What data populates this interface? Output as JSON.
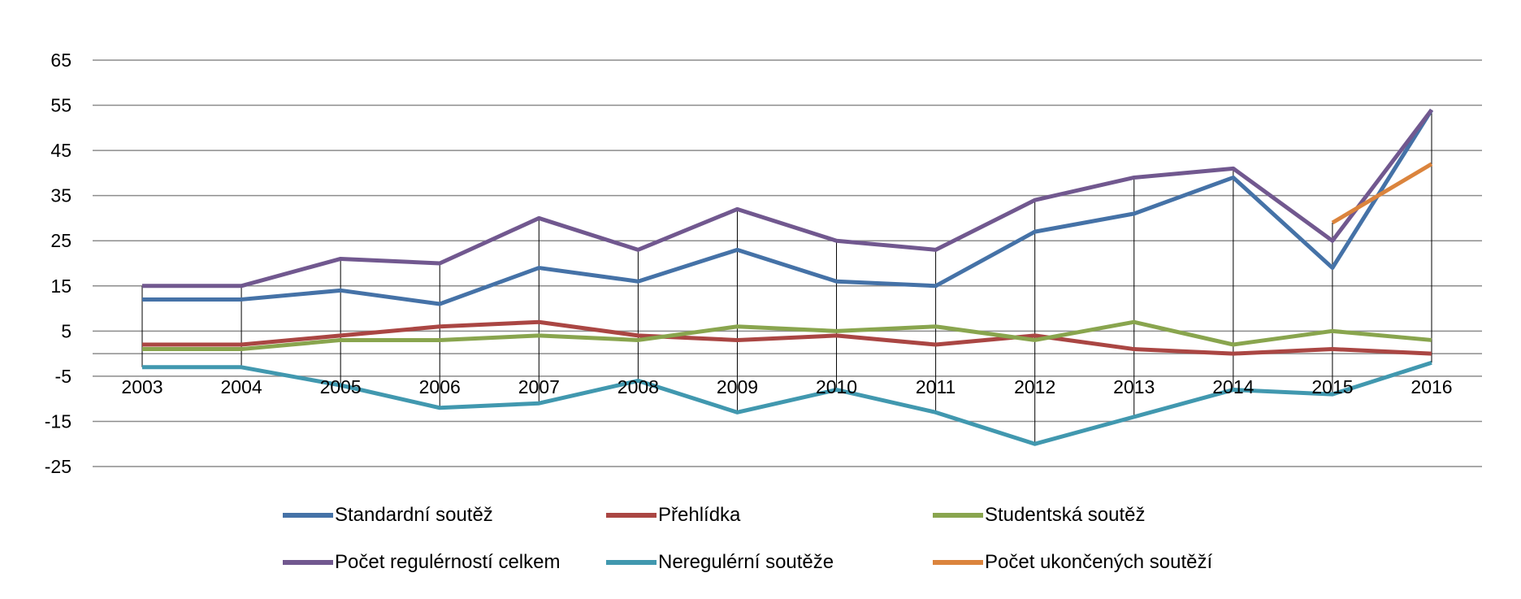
{
  "chart_data": {
    "type": "line",
    "title": "",
    "xlabel": "",
    "ylabel": "",
    "ylim": [
      -25,
      65
    ],
    "yticks": [
      "65",
      "55",
      "45",
      "35",
      "25",
      "15",
      "5",
      "-5",
      "-15",
      "-25"
    ],
    "ytick_values": [
      65,
      55,
      45,
      35,
      25,
      15,
      5,
      -5,
      -15,
      -25
    ],
    "categories": [
      "2003",
      "2004",
      "2005",
      "2006",
      "2007",
      "2008",
      "2009",
      "2010",
      "2011",
      "2012",
      "2013",
      "2014",
      "2015",
      "2016"
    ],
    "grid": true,
    "high_low_lines": true,
    "legend_position": "bottom",
    "series": [
      {
        "name": "Standardní soutěž",
        "color": "#4572A7",
        "values": [
          12,
          12,
          14,
          11,
          19,
          16,
          23,
          16,
          15,
          27,
          31,
          39,
          19,
          54
        ]
      },
      {
        "name": "Přehlídka",
        "color": "#AA4643",
        "values": [
          2,
          2,
          4,
          6,
          7,
          4,
          3,
          4,
          2,
          4,
          1,
          0,
          1,
          0
        ]
      },
      {
        "name": "Studentská soutěž",
        "color": "#89A54E",
        "values": [
          1,
          1,
          3,
          3,
          4,
          3,
          6,
          5,
          6,
          3,
          7,
          2,
          5,
          3
        ]
      },
      {
        "name": "Počet regulérností celkem",
        "color": "#71588F",
        "values": [
          15,
          15,
          21,
          20,
          30,
          23,
          32,
          25,
          23,
          34,
          39,
          41,
          25,
          54
        ]
      },
      {
        "name": "Neregulérní soutěže",
        "color": "#4198AF",
        "values": [
          -3,
          -3,
          -7,
          -12,
          -11,
          -6,
          -13,
          -8,
          -13,
          -20,
          -14,
          -8,
          -9,
          -2
        ]
      },
      {
        "name": "Počet ukončených soutěží",
        "color": "#DB843D",
        "values": [
          null,
          null,
          null,
          null,
          null,
          null,
          null,
          null,
          null,
          null,
          null,
          null,
          29,
          42
        ]
      }
    ]
  }
}
